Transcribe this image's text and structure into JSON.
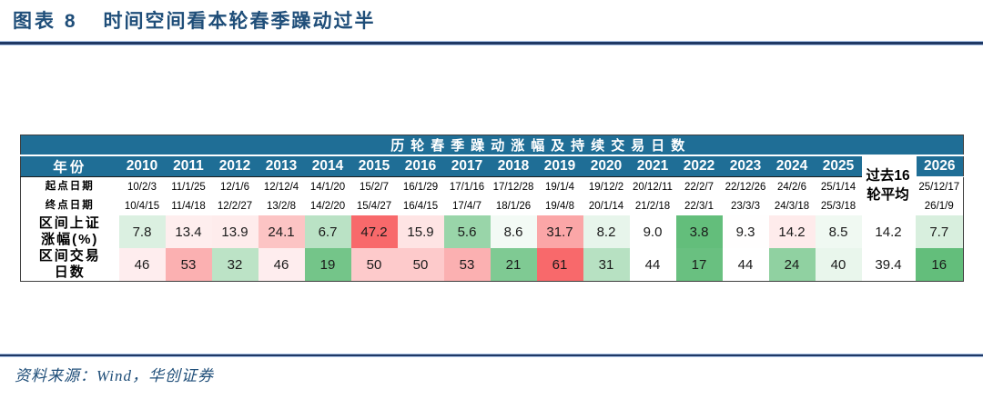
{
  "figure": {
    "label": "图表 8",
    "title": "时间空间看本轮春季躁动过半"
  },
  "source": {
    "text": "资料来源：Wind，华创证券"
  },
  "colors": {
    "title_blue": "#1F4E79",
    "rule_navy": "#1F3864",
    "header_teal": "#1F6E96",
    "heat_green": "#63BE7B",
    "heat_white": "#FFFFFF",
    "heat_red": "#F8696B"
  },
  "chart_data": {
    "type": "table",
    "title": "历轮春季躁动涨幅及持续交易日数",
    "year_header_label": "年份",
    "columns": [
      "2010",
      "2011",
      "2012",
      "2013",
      "2014",
      "2015",
      "2016",
      "2017",
      "2018",
      "2019",
      "2020",
      "2021",
      "2022",
      "2023",
      "2024",
      "2025"
    ],
    "avg_column_label": "过去16\n轮平均",
    "current_column": "2026",
    "rows": [
      {
        "key": "start_date",
        "label": "起点日期",
        "heat": false,
        "values": [
          "10/2/3",
          "11/1/25",
          "12/1/6",
          "12/12/4",
          "14/1/20",
          "15/2/7",
          "16/1/29",
          "17/1/16",
          "17/12/28",
          "19/1/4",
          "19/12/2",
          "20/12/11",
          "22/2/7",
          "22/12/26",
          "24/2/6",
          "25/1/14"
        ],
        "avg": null,
        "current": "25/12/17"
      },
      {
        "key": "end_date",
        "label": "终点日期",
        "heat": false,
        "values": [
          "10/4/15",
          "11/4/18",
          "12/2/27",
          "13/2/8",
          "14/2/20",
          "15/4/27",
          "16/4/15",
          "17/4/7",
          "18/1/26",
          "19/4/8",
          "20/1/14",
          "21/2/18",
          "22/3/1",
          "23/3/3",
          "24/3/18",
          "25/3/18"
        ],
        "avg": null,
        "current": "26/1/9"
      },
      {
        "key": "gain_pct",
        "label": "区间上证\n涨幅(%)",
        "heat": true,
        "values": [
          "7.8",
          "13.4",
          "13.9",
          "24.1",
          "6.7",
          "47.2",
          "15.9",
          "5.6",
          "8.6",
          "31.7",
          "8.2",
          "9.0",
          "3.8",
          "9.3",
          "14.2",
          "8.5"
        ],
        "avg": "14.2",
        "current": "7.7"
      },
      {
        "key": "days",
        "label": "区间交易\n日数",
        "heat": true,
        "values": [
          "46",
          "53",
          "32",
          "46",
          "19",
          "50",
          "50",
          "53",
          "21",
          "61",
          "31",
          "44",
          "17",
          "44",
          "24",
          "40"
        ],
        "avg": "39.4",
        "current": "16"
      }
    ]
  }
}
